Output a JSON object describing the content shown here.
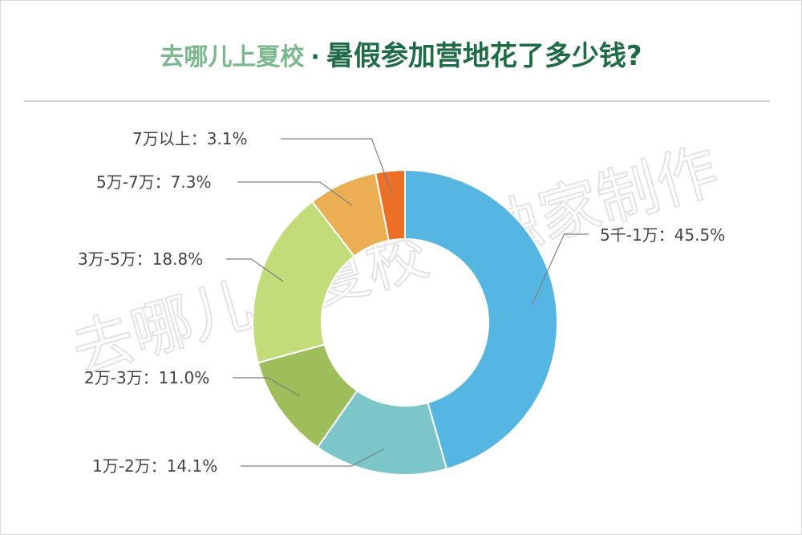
{
  "header": {
    "brand": "去哪儿上夏校",
    "separator": "·",
    "title": "暑假参加营地花了多少钱?"
  },
  "watermark": "去哪儿上夏校 · 独家制作",
  "chart_data": {
    "type": "pie",
    "donut": true,
    "title": "暑假参加营地花了多少钱?",
    "slices": [
      {
        "label": "5千-1万",
        "value": 45.5,
        "display": "5千-1万：45.5%",
        "color": "#55b7e1"
      },
      {
        "label": "1万-2万",
        "value": 14.1,
        "display": "1万-2万：14.1%",
        "color": "#7cc5c9"
      },
      {
        "label": "2万-3万",
        "value": 11.0,
        "display": "2万-3万：11.0%",
        "color": "#9dbe5a"
      },
      {
        "label": "3万-5万",
        "value": 18.8,
        "display": "3万-5万：18.8%",
        "color": "#c2dc7a"
      },
      {
        "label": "5万-7万",
        "value": 7.3,
        "display": "5万-7万：7.3%",
        "color": "#ecae52"
      },
      {
        "label": "7万以上",
        "value": 3.1,
        "display": "7万以上：3.1%",
        "color": "#ee7026"
      }
    ],
    "legend": "none",
    "label_style": "callout"
  }
}
